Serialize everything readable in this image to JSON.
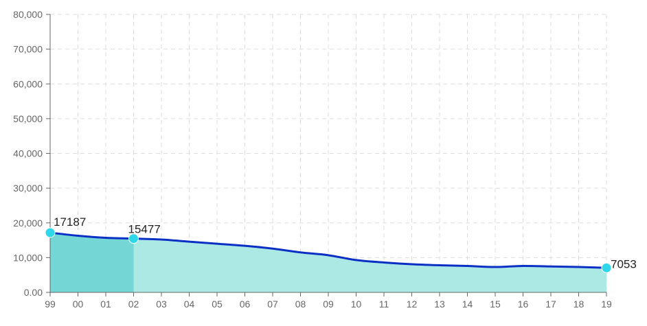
{
  "chart_data": {
    "type": "area",
    "x": [
      "99",
      "00",
      "01",
      "02",
      "03",
      "04",
      "05",
      "06",
      "07",
      "08",
      "09",
      "10",
      "11",
      "12",
      "13",
      "14",
      "15",
      "16",
      "17",
      "18",
      "19"
    ],
    "series": [
      {
        "values": [
          17187,
          16300,
          15700,
          15477,
          15200,
          14600,
          14000,
          13400,
          12600,
          11500,
          10700,
          9300,
          8600,
          8100,
          7800,
          7600,
          7300,
          7600,
          7450,
          7300,
          7053
        ]
      }
    ],
    "y_ticks": [
      "0.00",
      "10,000",
      "20,000",
      "30,000",
      "40,000",
      "50,000",
      "60,000",
      "70,000",
      "80,000"
    ],
    "ylim": [
      0,
      80000
    ],
    "highlight_end_index": 3,
    "labeled_points": [
      {
        "index": 0,
        "label": "17187"
      },
      {
        "index": 3,
        "label": "15477"
      },
      {
        "index": 20,
        "label": "7053"
      }
    ],
    "grid": true,
    "title": "",
    "xlabel": "",
    "ylabel": "",
    "colors": {
      "line": "#0a2fc4",
      "area": "#ace8e4",
      "area_highlight": "#74d7d6",
      "marker": "#2ed8ea",
      "grid": "#dddddd",
      "axis": "#666666"
    }
  }
}
